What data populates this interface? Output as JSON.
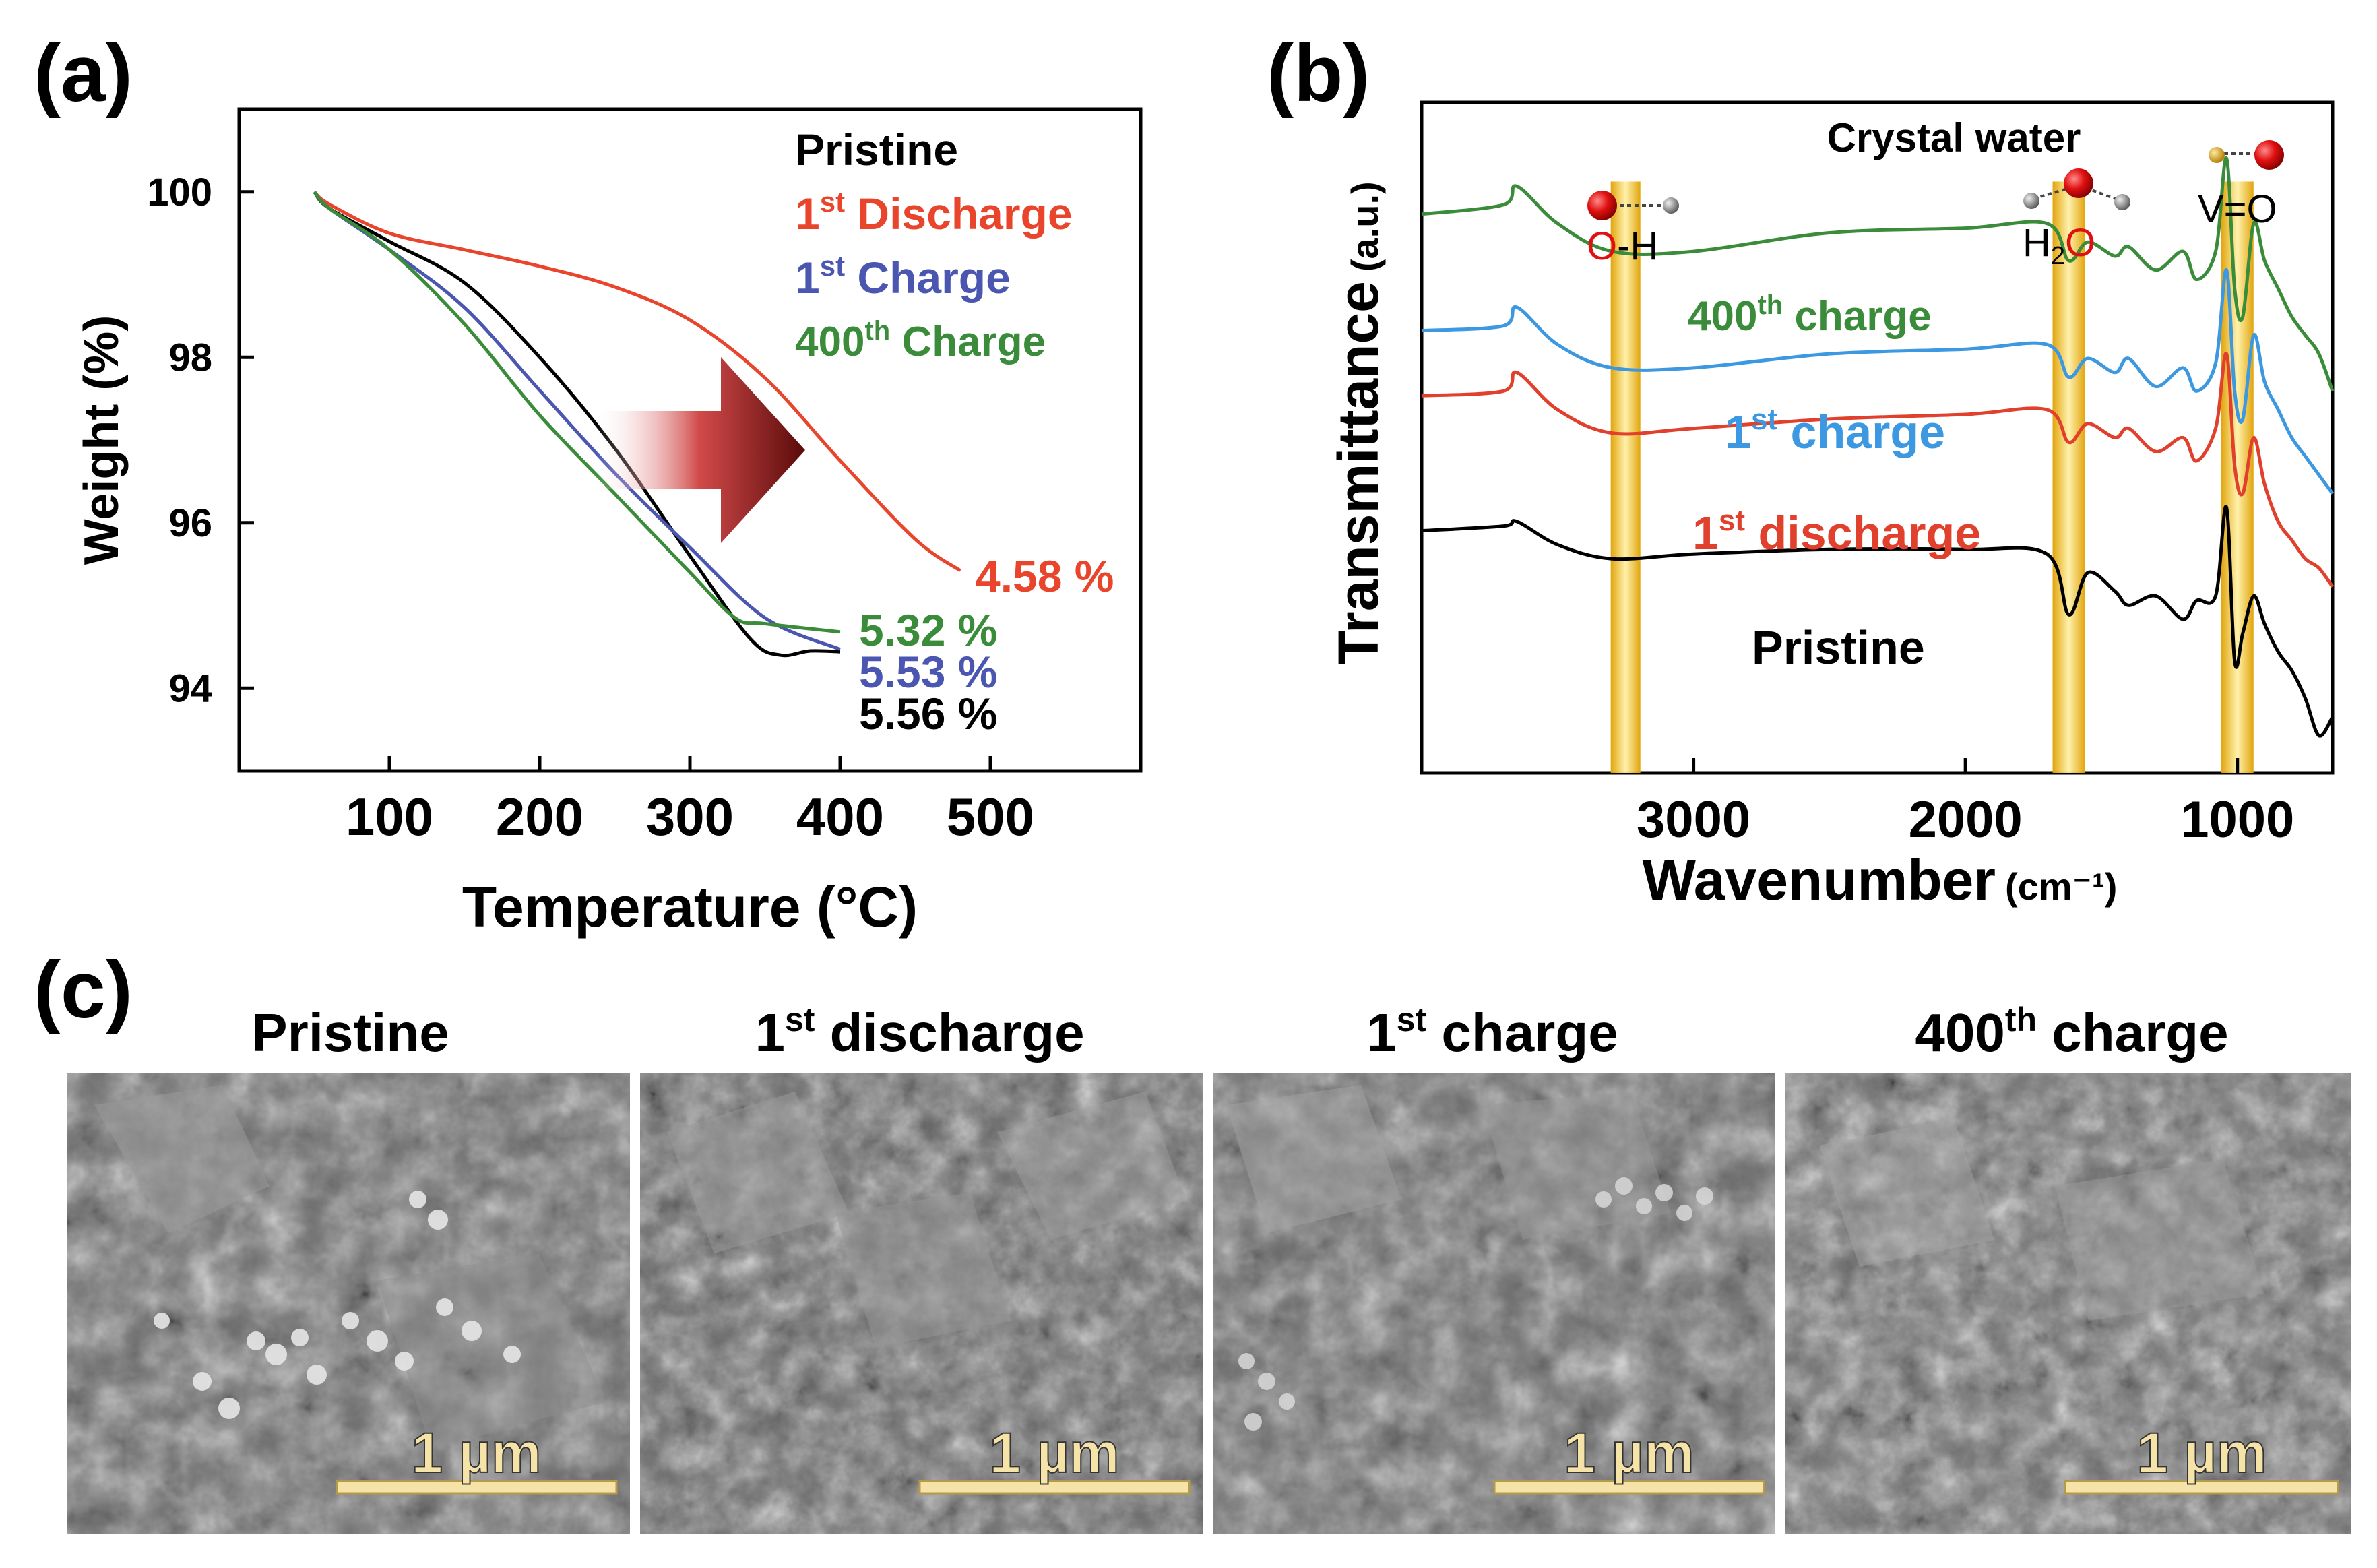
{
  "panel_a": {
    "label": "(a)",
    "legend": [
      {
        "base": "Pristine",
        "sup": "",
        "rest": "",
        "color": "#000000"
      },
      {
        "base": "1",
        "sup": "st",
        "rest": " Discharge",
        "color": "#e8452c"
      },
      {
        "base": "1",
        "sup": "st",
        "rest": " Charge",
        "color": "#4a56b0"
      },
      {
        "base": "400",
        "sup": "th",
        "rest": " Charge",
        "color": "#3a8c3a"
      }
    ],
    "loss_labels": [
      {
        "text": "4.58 %",
        "color": "#e8452c"
      },
      {
        "text": "5.32 %",
        "color": "#3a8c3a"
      },
      {
        "text": "5.53 %",
        "color": "#4a56b0"
      },
      {
        "text": "5.56 %",
        "color": "#000000"
      }
    ]
  },
  "panel_b": {
    "label": "(b)",
    "title": "Crystal water",
    "band_labels": {
      "oh_o": "O",
      "oh_h": "-H",
      "h2o_h": "H",
      "h2o_sub": "2",
      "h2o_o": "O",
      "vo": "V=O"
    },
    "series_labels": [
      {
        "base": "400",
        "sup": "th",
        "rest": " charge",
        "color": "#3a8c3a"
      },
      {
        "base": "1",
        "sup": "st",
        "rest": " charge",
        "color": "#3c98e0"
      },
      {
        "base": "1",
        "sup": "st",
        "rest": " discharge",
        "color": "#e0402c"
      },
      {
        "base": "Pristine",
        "sup": "",
        "rest": "",
        "color": "#000000"
      }
    ],
    "ylabel_main": "Transmittance",
    "ylabel_unit": "(a.u.)",
    "xlabel_main": "Wavenumber",
    "xlabel_unit": "(cm⁻¹)"
  },
  "panel_c": {
    "label": "(c)",
    "images": [
      {
        "title_base": "Pristine",
        "title_sup": "",
        "title_rest": "",
        "scale": "1 µm"
      },
      {
        "title_base": "1",
        "title_sup": "st",
        "title_rest": " discharge",
        "scale": "1 µm"
      },
      {
        "title_base": "1",
        "title_sup": "st",
        "title_rest": " charge",
        "scale": "1 µm"
      },
      {
        "title_base": "400",
        "title_sup": "th",
        "title_rest": " charge",
        "scale": "1 µm"
      }
    ]
  },
  "chart_data": [
    {
      "type": "line",
      "title": "",
      "xlabel": "Temperature (°C)",
      "ylabel": "Weight (%)",
      "xlim": [
        0,
        600
      ],
      "ylim": [
        93,
        101
      ],
      "xticks": [
        100,
        200,
        300,
        400,
        500
      ],
      "yticks": [
        94,
        96,
        98,
        100
      ],
      "series": [
        {
          "name": "Pristine",
          "color": "#000000",
          "x": [
            50,
            60,
            100,
            150,
            200,
            250,
            300,
            340,
            360,
            380,
            400
          ],
          "y": [
            100.0,
            99.8,
            99.4,
            98.9,
            98.0,
            96.9,
            95.6,
            94.6,
            94.4,
            94.45,
            94.44
          ]
        },
        {
          "name": "1st Discharge",
          "color": "#e8452c",
          "x": [
            50,
            60,
            100,
            150,
            200,
            250,
            300,
            350,
            400,
            450,
            480
          ],
          "y": [
            100.0,
            99.85,
            99.5,
            99.3,
            99.1,
            98.85,
            98.45,
            97.75,
            96.75,
            95.8,
            95.42
          ]
        },
        {
          "name": "1st Charge",
          "color": "#4a56b0",
          "x": [
            50,
            60,
            100,
            150,
            200,
            250,
            300,
            350,
            400
          ],
          "y": [
            100.0,
            99.8,
            99.3,
            98.6,
            97.6,
            96.6,
            95.7,
            94.85,
            94.47
          ]
        },
        {
          "name": "400th Charge",
          "color": "#3a8c3a",
          "x": [
            50,
            60,
            100,
            150,
            200,
            250,
            300,
            330,
            350,
            400
          ],
          "y": [
            100.0,
            99.8,
            99.3,
            98.4,
            97.3,
            96.35,
            95.4,
            94.85,
            94.78,
            94.68
          ]
        }
      ]
    },
    {
      "type": "line",
      "title": "Crystal water",
      "xlabel": "Wavenumber (cm⁻¹)",
      "ylabel": "Transmittance (a.u.)",
      "xlim": [
        4000,
        650
      ],
      "xticks": [
        3000,
        2000,
        1000
      ],
      "highlight_bands": [
        {
          "label": "O-H",
          "center": 3250
        },
        {
          "label": "H2O",
          "center": 1620
        },
        {
          "label": "V=O",
          "center": 1000
        }
      ],
      "series": [
        {
          "name": "400th charge",
          "color": "#3a8c3a",
          "x": [
            4000,
            3700,
            3650,
            3500,
            3300,
            3000,
            2500,
            2000,
            1700,
            1620,
            1550,
            1450,
            1400,
            1300,
            1200,
            1150,
            1080,
            1040,
            1010,
            980,
            940,
            900,
            850,
            800,
            750,
            700,
            650
          ],
          "y": [
            4.4,
            4.5,
            4.7,
            4.3,
            4.0,
            4.0,
            4.2,
            4.25,
            4.3,
            3.9,
            4.1,
            3.95,
            4.05,
            3.8,
            4.0,
            3.7,
            4.0,
            5.0,
            3.6,
            3.3,
            4.3,
            3.9,
            3.6,
            3.3,
            3.1,
            2.9,
            2.5
          ]
        },
        {
          "name": "1st charge",
          "color": "#3c98e0",
          "x": [
            4000,
            3700,
            3650,
            3500,
            3300,
            3000,
            2500,
            2000,
            1700,
            1620,
            1550,
            1450,
            1400,
            1300,
            1200,
            1150,
            1080,
            1040,
            1010,
            980,
            940,
            900,
            850,
            800,
            750,
            700,
            650
          ],
          "y": [
            3.15,
            3.2,
            3.4,
            3.0,
            2.75,
            2.75,
            2.9,
            2.95,
            3.0,
            2.65,
            2.85,
            2.7,
            2.85,
            2.55,
            2.75,
            2.5,
            2.8,
            3.8,
            2.5,
            2.2,
            3.1,
            2.6,
            2.3,
            2.0,
            1.8,
            1.6,
            1.4
          ]
        },
        {
          "name": "1st discharge",
          "color": "#e0402c",
          "x": [
            4000,
            3700,
            3650,
            3500,
            3300,
            3000,
            2500,
            2000,
            1700,
            1620,
            1550,
            1450,
            1400,
            1300,
            1200,
            1150,
            1080,
            1040,
            1010,
            980,
            940,
            900,
            850,
            800,
            750,
            700,
            650
          ],
          "y": [
            2.45,
            2.5,
            2.7,
            2.3,
            2.05,
            2.1,
            2.2,
            2.25,
            2.3,
            1.95,
            2.15,
            2.0,
            2.1,
            1.85,
            2.0,
            1.75,
            2.1,
            2.9,
            1.7,
            1.4,
            2.0,
            1.5,
            1.1,
            0.9,
            0.7,
            0.6,
            0.4
          ]
        },
        {
          "name": "Pristine",
          "color": "#000000",
          "x": [
            4000,
            3700,
            3650,
            3500,
            3300,
            3000,
            2500,
            2000,
            1700,
            1620,
            1550,
            1450,
            1400,
            1300,
            1200,
            1150,
            1080,
            1040,
            1010,
            980,
            940,
            900,
            850,
            800,
            750,
            700,
            650
          ],
          "y": [
            1.0,
            1.05,
            1.1,
            0.85,
            0.7,
            0.75,
            0.8,
            0.8,
            0.75,
            0.1,
            0.55,
            0.35,
            0.2,
            0.3,
            0.05,
            0.25,
            0.3,
            1.25,
            -0.4,
            -0.1,
            0.3,
            0.0,
            -0.3,
            -0.5,
            -0.8,
            -1.2,
            -1.0
          ]
        }
      ]
    }
  ]
}
